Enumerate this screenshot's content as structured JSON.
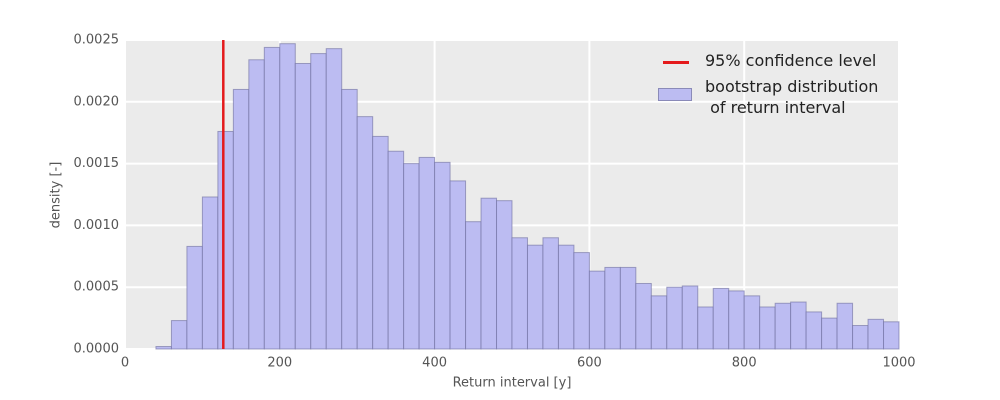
{
  "chart_data": {
    "type": "histogram",
    "xlabel": "Return interval [y]",
    "ylabel": "density [-]",
    "bins": [
      0,
      20,
      40,
      60,
      80,
      100,
      120,
      140,
      160,
      180,
      200,
      220,
      240,
      260,
      280,
      300,
      320,
      340,
      360,
      380,
      400,
      420,
      440,
      460,
      480,
      500,
      520,
      540,
      560,
      580,
      600,
      620,
      640,
      660,
      680,
      700,
      720,
      740,
      760,
      780,
      800,
      820,
      840,
      860,
      880,
      900,
      920,
      940,
      960,
      980,
      1000
    ],
    "series": [
      {
        "name": "bootstrap distribution\n of return interval",
        "color": "#bcbcf2",
        "values": [
          0,
          0,
          2e-05,
          0.00023,
          0.00083,
          0.00123,
          0.00176,
          0.0021,
          0.00234,
          0.00244,
          0.00247,
          0.00231,
          0.00239,
          0.00243,
          0.0021,
          0.00188,
          0.00172,
          0.0016,
          0.0015,
          0.00155,
          0.00151,
          0.00136,
          0.00103,
          0.00122,
          0.0012,
          0.0009,
          0.00084,
          0.0009,
          0.00084,
          0.00078,
          0.00063,
          0.00066,
          0.00066,
          0.00053,
          0.00043,
          0.0005,
          0.00051,
          0.00034,
          0.00049,
          0.00047,
          0.00043,
          0.00034,
          0.00037,
          0.00038,
          0.0003,
          0.00025,
          0.00037,
          0.00019,
          0.00024,
          0.00022
        ]
      }
    ],
    "vline": {
      "name": "95% confidence level",
      "x": 127,
      "color": "#e41a1c"
    },
    "xlim": [
      0,
      1000
    ],
    "xticks": [
      0,
      200,
      400,
      600,
      800,
      1000
    ],
    "ylim": [
      0,
      0.0025
    ],
    "yticks": [
      {
        "value": 0,
        "label": "0.0000"
      },
      {
        "value": 0.0005,
        "label": "0.0005"
      },
      {
        "value": 0.001,
        "label": "0.0010"
      },
      {
        "value": 0.0015,
        "label": "0.0015"
      },
      {
        "value": 0.002,
        "label": "0.0020"
      },
      {
        "value": 0.0025,
        "label": "0.0025"
      }
    ],
    "grid": true,
    "legend": "upper right"
  }
}
